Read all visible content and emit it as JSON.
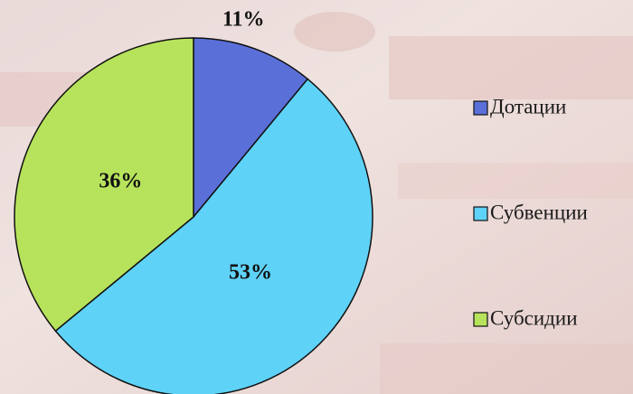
{
  "chart_data": {
    "type": "pie",
    "categories": [
      "Дотации",
      "Субвенции",
      "Субсидии"
    ],
    "values": [
      11,
      53,
      36
    ],
    "value_labels": [
      "11%",
      "53%",
      "36%"
    ],
    "colors": [
      "#5b6fd9",
      "#5fd2f7",
      "#b7e35c"
    ],
    "legend": "right"
  }
}
